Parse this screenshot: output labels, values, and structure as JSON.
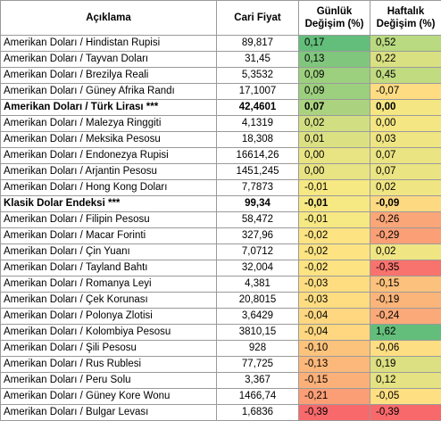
{
  "header": {
    "name": "Açıklama",
    "price": "Cari Fiyat",
    "daily_line1": "Günlük",
    "daily_line2": "Değişim (%)",
    "weekly_line1": "Haftalık",
    "weekly_line2": "Değişim (%)"
  },
  "rows": [
    {
      "name": "Amerikan Doları / Hindistan Rupisi",
      "price": "89,817",
      "daily": "0,17",
      "weekly": "0,52",
      "daily_color": "#63be7b",
      "weekly_color": "#b9da80",
      "bold": false
    },
    {
      "name": "Amerikan Doları / Tayvan Doları",
      "price": "31,45",
      "daily": "0,13",
      "weekly": "0,22",
      "daily_color": "#80c77d",
      "weekly_color": "#d9e082",
      "bold": false
    },
    {
      "name": "Amerikan Doları / Brezilya Reali",
      "price": "5,3532",
      "daily": "0,09",
      "weekly": "0,45",
      "daily_color": "#9ccf7e",
      "weekly_color": "#c0db80",
      "bold": false
    },
    {
      "name": "Amerikan Doları / Güney Afrika Randı",
      "price": "17,1007",
      "daily": "0,09",
      "weekly": "-0,07",
      "daily_color": "#9ccf7e",
      "weekly_color": "#fddc82",
      "bold": false
    },
    {
      "name": "Amerikan Doları / Türk Lirası ***",
      "price": "42,4601",
      "daily": "0,07",
      "weekly": "0,00",
      "daily_color": "#abd37f",
      "weekly_color": "#f4e683",
      "bold": true
    },
    {
      "name": "Amerikan Doları / Malezya Ringgiti",
      "price": "4,1319",
      "daily": "0,02",
      "weekly": "0,00",
      "daily_color": "#d1de82",
      "weekly_color": "#f4e683",
      "bold": false
    },
    {
      "name": "Amerikan Doları / Meksika Pesosu",
      "price": "18,308",
      "daily": "0,01",
      "weekly": "0,03",
      "daily_color": "#dbe182",
      "weekly_color": "#efe583",
      "bold": false
    },
    {
      "name": "Amerikan Doları / Endonezya Rupisi",
      "price": "16614,26",
      "daily": "0,00",
      "weekly": "0,07",
      "daily_color": "#e8e383",
      "weekly_color": "#ebe483",
      "bold": false
    },
    {
      "name": "Amerikan Doları / Arjantin Pesosu",
      "price": "1451,245",
      "daily": "0,00",
      "weekly": "0,07",
      "daily_color": "#e8e383",
      "weekly_color": "#ebe483",
      "bold": false
    },
    {
      "name": "Amerikan Doları / Hong Kong Doları",
      "price": "7,7873",
      "daily": "-0,01",
      "weekly": "0,02",
      "daily_color": "#f6e883",
      "weekly_color": "#f0e583",
      "bold": false
    },
    {
      "name": "Klasik Dolar Endeksi ***",
      "price": "99,34",
      "daily": "-0,01",
      "weekly": "-0,09",
      "daily_color": "#f6e883",
      "weekly_color": "#fdd982",
      "bold": true
    },
    {
      "name": "Amerikan Doları / Filipin Pesosu",
      "price": "58,472",
      "daily": "-0,01",
      "weekly": "-0,26",
      "daily_color": "#f6e883",
      "weekly_color": "#fba678",
      "bold": false
    },
    {
      "name": "Amerikan Doları / Macar Forinti",
      "price": "327,96",
      "daily": "-0,02",
      "weekly": "-0,29",
      "daily_color": "#fde382",
      "weekly_color": "#fa9f76",
      "bold": false
    },
    {
      "name": "Amerikan Doları / Çin Yuanı",
      "price": "7,0712",
      "daily": "-0,02",
      "weekly": "0,02",
      "daily_color": "#fde382",
      "weekly_color": "#f0e583",
      "bold": false
    },
    {
      "name": "Amerikan Doları / Tayland Bahtı",
      "price": "32,004",
      "daily": "-0,02",
      "weekly": "-0,35",
      "daily_color": "#fde382",
      "weekly_color": "#f8736d",
      "bold": false
    },
    {
      "name": "Amerikan Doları / Romanya Leyi",
      "price": "4,381",
      "daily": "-0,03",
      "weekly": "-0,15",
      "daily_color": "#fedd81",
      "weekly_color": "#fcc17c",
      "bold": false
    },
    {
      "name": "Amerikan Doları / Çek Korunası",
      "price": "20,8015",
      "daily": "-0,03",
      "weekly": "-0,19",
      "daily_color": "#fedd81",
      "weekly_color": "#fbb479",
      "bold": false
    },
    {
      "name": "Amerikan Doları / Polonya Zlotisi",
      "price": "3,6429",
      "daily": "-0,04",
      "weekly": "-0,24",
      "daily_color": "#fed780",
      "weekly_color": "#fba978",
      "bold": false
    },
    {
      "name": "Amerikan Doları / Kolombiya Pesosu",
      "price": "3810,15",
      "daily": "-0,04",
      "weekly": "1,62",
      "daily_color": "#fed780",
      "weekly_color": "#63be7b",
      "bold": false
    },
    {
      "name": "Amerikan Doları / Şili Pesosu",
      "price": "928",
      "daily": "-0,10",
      "weekly": "-0,06",
      "daily_color": "#fcc37c",
      "weekly_color": "#fede82",
      "bold": false
    },
    {
      "name": "Amerikan Doları / Rus Rublesi",
      "price": "77,725",
      "daily": "-0,13",
      "weekly": "0,19",
      "daily_color": "#fcb87a",
      "weekly_color": "#dce082",
      "bold": false
    },
    {
      "name": "Amerikan Doları / Peru Solu",
      "price": "3,367",
      "daily": "-0,15",
      "weekly": "0,12",
      "daily_color": "#fbb079",
      "weekly_color": "#e4e283",
      "bold": false
    },
    {
      "name": "Amerikan Doları / Güney Kore Wonu",
      "price": "1466,74",
      "daily": "-0,21",
      "weekly": "-0,05",
      "daily_color": "#fb9e75",
      "weekly_color": "#fee082",
      "bold": false
    },
    {
      "name": "Amerikan Doları / Bulgar Levası",
      "price": "1,6836",
      "daily": "-0,39",
      "weekly": "-0,39",
      "daily_color": "#f8696b",
      "weekly_color": "#f8696b",
      "bold": false
    }
  ]
}
